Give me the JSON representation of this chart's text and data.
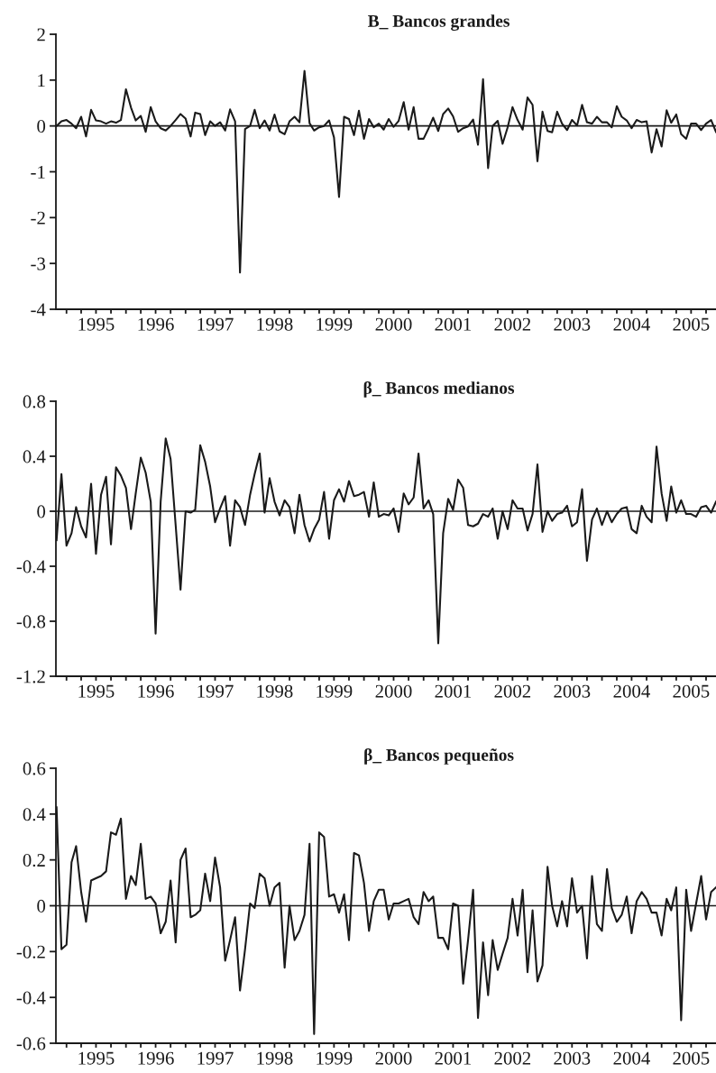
{
  "chart_data": [
    {
      "type": "line",
      "title": "B_ Bancos grandes",
      "color": "#1a1a1a",
      "line_style": "solid",
      "marker": "none",
      "x": [
        "1994-11",
        "1994-12",
        "1995-01",
        "1995-02",
        "1995-03",
        "1995-04",
        "1995-05",
        "1995-06",
        "1995-07",
        "1995-08",
        "1995-09",
        "1995-10",
        "1995-11",
        "1995-12",
        "1996-01",
        "1996-02",
        "1996-03",
        "1996-04",
        "1996-05",
        "1996-06",
        "1996-07",
        "1996-08",
        "1996-09",
        "1996-10",
        "1996-11",
        "1996-12",
        "1997-01",
        "1997-02",
        "1997-03",
        "1997-04",
        "1997-05",
        "1997-06",
        "1997-07",
        "1997-08",
        "1997-09",
        "1997-10",
        "1997-11",
        "1997-12",
        "1998-01",
        "1998-02",
        "1998-03",
        "1998-04",
        "1998-05",
        "1998-06",
        "1998-07",
        "1998-08",
        "1998-09",
        "1998-10",
        "1998-11",
        "1998-12",
        "1999-01",
        "1999-02",
        "1999-03",
        "1999-04",
        "1999-05",
        "1999-06",
        "1999-07",
        "1999-08",
        "1999-09",
        "1999-10",
        "1999-11",
        "1999-12",
        "2000-01",
        "2000-02",
        "2000-03",
        "2000-04",
        "2000-05",
        "2000-06",
        "2000-07",
        "2000-08",
        "2000-09",
        "2000-10",
        "2000-11",
        "2000-12",
        "2001-01",
        "2001-02",
        "2001-03",
        "2001-04",
        "2001-05",
        "2001-06",
        "2001-07",
        "2001-08",
        "2001-09",
        "2001-10",
        "2001-11",
        "2001-12",
        "2002-01",
        "2002-02",
        "2002-03",
        "2002-04",
        "2002-05",
        "2002-06",
        "2002-07",
        "2002-08",
        "2002-09",
        "2002-10",
        "2002-11",
        "2002-12",
        "2003-01",
        "2003-02",
        "2003-03",
        "2003-04",
        "2003-05",
        "2003-06",
        "2003-07",
        "2003-08",
        "2003-09",
        "2003-10",
        "2003-11",
        "2003-12",
        "2004-01",
        "2004-02",
        "2004-03",
        "2004-04",
        "2004-05",
        "2004-06",
        "2004-07",
        "2004-08",
        "2004-09",
        "2004-10",
        "2004-11",
        "2004-12",
        "2005-01",
        "2005-02",
        "2005-03",
        "2005-04",
        "2005-05",
        "2005-06",
        "2005-07",
        "2005-08",
        "2005-09",
        "2005-10",
        "2005-11",
        "2005-12"
      ],
      "values": [
        0,
        0.1,
        0.13,
        0.05,
        -0.05,
        0.2,
        -0.23,
        0.35,
        0.12,
        0.1,
        0.05,
        0.1,
        0.07,
        0.13,
        0.8,
        0.4,
        0.12,
        0.22,
        -0.13,
        0.41,
        0.1,
        -0.05,
        -0.1,
        0,
        0.13,
        0.26,
        0.16,
        -0.23,
        0.29,
        0.26,
        -0.2,
        0.1,
        0,
        0.08,
        -0.1,
        0.36,
        0.1,
        -3.2,
        -0.07,
        0,
        0.35,
        -0.05,
        0.12,
        -0.1,
        0.25,
        -0.12,
        -0.18,
        0.1,
        0.2,
        0.08,
        1.2,
        0.06,
        -0.1,
        -0.03,
        0,
        0.12,
        -0.25,
        -1.55,
        0.2,
        0.15,
        -0.2,
        0.33,
        -0.28,
        0.15,
        -0.03,
        0.05,
        -0.08,
        0.15,
        -0.02,
        0.11,
        0.52,
        -0.08,
        0.41,
        -0.28,
        -0.28,
        -0.05,
        0.18,
        -0.11,
        0.26,
        0.38,
        0.21,
        -0.13,
        -0.05,
        -0.01,
        0.14,
        -0.41,
        1.02,
        -0.92,
        0,
        0.11,
        -0.39,
        -0.03,
        0.41,
        0.13,
        -0.08,
        0.62,
        0.46,
        -0.77,
        0.31,
        -0.11,
        -0.14,
        0.31,
        0.05,
        -0.09,
        0.13,
        0.01,
        0.46,
        0.08,
        0.05,
        0.2,
        0.08,
        0.08,
        -0.03,
        0.43,
        0.2,
        0.12,
        -0.05,
        0.13,
        0.08,
        0.1,
        -0.58,
        -0.07,
        -0.45,
        0.34,
        0.07,
        0.25,
        -0.18,
        -0.28,
        0.05,
        0.05,
        -0.09,
        0.05,
        0.13,
        -0.13
      ],
      "xlim": [
        "1994-10-28",
        "2005-12-01"
      ],
      "ylim": [
        -4,
        2
      ],
      "yticks": [
        -4,
        -3,
        -2,
        -1,
        0,
        1,
        2
      ],
      "xticks": [
        {
          "value": "1995-01",
          "label": null
        },
        {
          "value": "1995-04",
          "label": null
        },
        {
          "value": "1995-07",
          "label": "1995"
        },
        {
          "value": "1995-10",
          "label": null
        },
        {
          "value": "1996-01",
          "label": null
        },
        {
          "value": "1996-04",
          "label": null
        },
        {
          "value": "1996-07",
          "label": "1996"
        },
        {
          "value": "1996-10",
          "label": null
        },
        {
          "value": "1997-01",
          "label": null
        },
        {
          "value": "1997-04",
          "label": null
        },
        {
          "value": "1997-07",
          "label": "1997"
        },
        {
          "value": "1997-10",
          "label": null
        },
        {
          "value": "1998-01",
          "label": null
        },
        {
          "value": "1998-04",
          "label": null
        },
        {
          "value": "1998-07",
          "label": "1998"
        },
        {
          "value": "1998-10",
          "label": null
        },
        {
          "value": "1999-01",
          "label": null
        },
        {
          "value": "1999-04",
          "label": null
        },
        {
          "value": "1999-07",
          "label": "1999"
        },
        {
          "value": "1999-10",
          "label": null
        },
        {
          "value": "2000-01",
          "label": null
        },
        {
          "value": "2000-04",
          "label": null
        },
        {
          "value": "2000-07",
          "label": "2000"
        },
        {
          "value": "2000-10",
          "label": null
        },
        {
          "value": "2001-01",
          "label": null
        },
        {
          "value": "2001-04",
          "label": null
        },
        {
          "value": "2001-07",
          "label": "2001"
        },
        {
          "value": "2001-10",
          "label": null
        },
        {
          "value": "2002-01",
          "label": null
        },
        {
          "value": "2002-04",
          "label": null
        },
        {
          "value": "2002-07",
          "label": "2002"
        },
        {
          "value": "2002-10",
          "label": null
        },
        {
          "value": "2003-01",
          "label": null
        },
        {
          "value": "2003-04",
          "label": null
        },
        {
          "value": "2003-07",
          "label": "2003"
        },
        {
          "value": "2003-10",
          "label": null
        },
        {
          "value": "2004-01",
          "label": null
        },
        {
          "value": "2004-04",
          "label": null
        },
        {
          "value": "2004-07",
          "label": "2004"
        },
        {
          "value": "2004-10",
          "label": null
        },
        {
          "value": "2005-01",
          "label": null
        },
        {
          "value": "2005-04",
          "label": null
        },
        {
          "value": "2005-07",
          "label": "2005"
        },
        {
          "value": "2005-10",
          "label": null
        }
      ],
      "ref_lines": [
        {
          "axis": "y",
          "value": 0,
          "color": "#1a1a1a"
        }
      ]
    },
    {
      "type": "line",
      "title": "β_ Bancos medianos",
      "color": "#1a1a1a",
      "line_style": "solid",
      "marker": "none",
      "x": [
        "1994-11",
        "1994-12",
        "1995-01",
        "1995-02",
        "1995-03",
        "1995-04",
        "1995-05",
        "1995-06",
        "1995-07",
        "1995-08",
        "1995-09",
        "1995-10",
        "1995-11",
        "1995-12",
        "1996-01",
        "1996-02",
        "1996-03",
        "1996-04",
        "1996-05",
        "1996-06",
        "1996-07",
        "1996-08",
        "1996-09",
        "1996-10",
        "1996-11",
        "1996-12",
        "1997-01",
        "1997-02",
        "1997-03",
        "1997-04",
        "1997-05",
        "1997-06",
        "1997-07",
        "1997-08",
        "1997-09",
        "1997-10",
        "1997-11",
        "1997-12",
        "1998-01",
        "1998-02",
        "1998-03",
        "1998-04",
        "1998-05",
        "1998-06",
        "1998-07",
        "1998-08",
        "1998-09",
        "1998-10",
        "1998-11",
        "1998-12",
        "1999-01",
        "1999-02",
        "1999-03",
        "1999-04",
        "1999-05",
        "1999-06",
        "1999-07",
        "1999-08",
        "1999-09",
        "1999-10",
        "1999-11",
        "1999-12",
        "2000-01",
        "2000-02",
        "2000-03",
        "2000-04",
        "2000-05",
        "2000-06",
        "2000-07",
        "2000-08",
        "2000-09",
        "2000-10",
        "2000-11",
        "2000-12",
        "2001-01",
        "2001-02",
        "2001-03",
        "2001-04",
        "2001-05",
        "2001-06",
        "2001-07",
        "2001-08",
        "2001-09",
        "2001-10",
        "2001-11",
        "2001-12",
        "2002-01",
        "2002-02",
        "2002-03",
        "2002-04",
        "2002-05",
        "2002-06",
        "2002-07",
        "2002-08",
        "2002-09",
        "2002-10",
        "2002-11",
        "2002-12",
        "2003-01",
        "2003-02",
        "2003-03",
        "2003-04",
        "2003-05",
        "2003-06",
        "2003-07",
        "2003-08",
        "2003-09",
        "2003-10",
        "2003-11",
        "2003-12",
        "2004-01",
        "2004-02",
        "2004-03",
        "2004-04",
        "2004-05",
        "2004-06",
        "2004-07",
        "2004-08",
        "2004-09",
        "2004-10",
        "2004-11",
        "2004-12",
        "2005-01",
        "2005-02",
        "2005-03",
        "2005-04",
        "2005-05",
        "2005-06",
        "2005-07",
        "2005-08",
        "2005-09",
        "2005-10",
        "2005-11",
        "2005-12"
      ],
      "values": [
        -0.21,
        0.27,
        -0.25,
        -0.16,
        0.03,
        -0.11,
        -0.19,
        0.2,
        -0.31,
        0.12,
        0.25,
        -0.24,
        0.32,
        0.26,
        0.17,
        -0.13,
        0.13,
        0.39,
        0.28,
        0.07,
        -0.89,
        0.07,
        0.53,
        0.38,
        -0.1,
        -0.57,
        0,
        -0.01,
        0.01,
        0.48,
        0.36,
        0.18,
        -0.08,
        0.02,
        0.11,
        -0.25,
        0.08,
        0.03,
        -0.1,
        0.12,
        0.27,
        0.42,
        -0.01,
        0.24,
        0.07,
        -0.03,
        0.08,
        0.03,
        -0.16,
        0.12,
        -0.1,
        -0.22,
        -0.13,
        -0.06,
        0.14,
        -0.2,
        0.08,
        0.16,
        0.07,
        0.22,
        0.11,
        0.12,
        0.14,
        -0.04,
        0.21,
        -0.04,
        -0.02,
        -0.03,
        0.02,
        -0.15,
        0.13,
        0.05,
        0.1,
        0.42,
        0.02,
        0.08,
        -0.02,
        -0.96,
        -0.16,
        0.09,
        0.01,
        0.23,
        0.17,
        -0.1,
        -0.11,
        -0.09,
        -0.02,
        -0.04,
        0.02,
        -0.2,
        0,
        -0.13,
        0.08,
        0.02,
        0.02,
        -0.14,
        -0.02,
        0.34,
        -0.15,
        0,
        -0.07,
        -0.02,
        -0.01,
        0.04,
        -0.11,
        -0.08,
        0.16,
        -0.36,
        -0.06,
        0.02,
        -0.1,
        0,
        -0.08,
        -0.02,
        0.02,
        0.03,
        -0.13,
        -0.16,
        0.04,
        -0.04,
        -0.08,
        0.47,
        0.13,
        -0.07,
        0.18,
        -0.01,
        0.08,
        -0.02,
        -0.02,
        -0.04,
        0.03,
        0.04,
        -0.01,
        0.07
      ],
      "xlim": [
        "1994-10-28",
        "2005-12-01"
      ],
      "ylim": [
        -1.2,
        0.8
      ],
      "yticks": [
        -1.2,
        -0.8,
        -0.4,
        0,
        0.4,
        0.8
      ],
      "xticks": [
        {
          "value": "1995-01",
          "label": null
        },
        {
          "value": "1995-04",
          "label": null
        },
        {
          "value": "1995-07",
          "label": "1995"
        },
        {
          "value": "1995-10",
          "label": null
        },
        {
          "value": "1996-01",
          "label": null
        },
        {
          "value": "1996-04",
          "label": null
        },
        {
          "value": "1996-07",
          "label": "1996"
        },
        {
          "value": "1996-10",
          "label": null
        },
        {
          "value": "1997-01",
          "label": null
        },
        {
          "value": "1997-04",
          "label": null
        },
        {
          "value": "1997-07",
          "label": "1997"
        },
        {
          "value": "1997-10",
          "label": null
        },
        {
          "value": "1998-01",
          "label": null
        },
        {
          "value": "1998-04",
          "label": null
        },
        {
          "value": "1998-07",
          "label": "1998"
        },
        {
          "value": "1998-10",
          "label": null
        },
        {
          "value": "1999-01",
          "label": null
        },
        {
          "value": "1999-04",
          "label": null
        },
        {
          "value": "1999-07",
          "label": "1999"
        },
        {
          "value": "1999-10",
          "label": null
        },
        {
          "value": "2000-01",
          "label": null
        },
        {
          "value": "2000-04",
          "label": null
        },
        {
          "value": "2000-07",
          "label": "2000"
        },
        {
          "value": "2000-10",
          "label": null
        },
        {
          "value": "2001-01",
          "label": null
        },
        {
          "value": "2001-04",
          "label": null
        },
        {
          "value": "2001-07",
          "label": "2001"
        },
        {
          "value": "2001-10",
          "label": null
        },
        {
          "value": "2002-01",
          "label": null
        },
        {
          "value": "2002-04",
          "label": null
        },
        {
          "value": "2002-07",
          "label": "2002"
        },
        {
          "value": "2002-10",
          "label": null
        },
        {
          "value": "2003-01",
          "label": null
        },
        {
          "value": "2003-04",
          "label": null
        },
        {
          "value": "2003-07",
          "label": "2003"
        },
        {
          "value": "2003-10",
          "label": null
        },
        {
          "value": "2004-01",
          "label": null
        },
        {
          "value": "2004-04",
          "label": null
        },
        {
          "value": "2004-07",
          "label": "2004"
        },
        {
          "value": "2004-10",
          "label": null
        },
        {
          "value": "2005-01",
          "label": null
        },
        {
          "value": "2005-04",
          "label": null
        },
        {
          "value": "2005-07",
          "label": "2005"
        },
        {
          "value": "2005-10",
          "label": null
        }
      ],
      "ref_lines": [
        {
          "axis": "y",
          "value": 0,
          "color": "#1a1a1a"
        }
      ]
    },
    {
      "type": "line",
      "title": "β_ Bancos pequeños",
      "color": "#1a1a1a",
      "line_style": "solid",
      "marker": "none",
      "x": [
        "1994-11",
        "1994-12",
        "1995-01",
        "1995-02",
        "1995-03",
        "1995-04",
        "1995-05",
        "1995-06",
        "1995-07",
        "1995-08",
        "1995-09",
        "1995-10",
        "1995-11",
        "1995-12",
        "1996-01",
        "1996-02",
        "1996-03",
        "1996-04",
        "1996-05",
        "1996-06",
        "1996-07",
        "1996-08",
        "1996-09",
        "1996-10",
        "1996-11",
        "1996-12",
        "1997-01",
        "1997-02",
        "1997-03",
        "1997-04",
        "1997-05",
        "1997-06",
        "1997-07",
        "1997-08",
        "1997-09",
        "1997-10",
        "1997-11",
        "1997-12",
        "1998-01",
        "1998-02",
        "1998-03",
        "1998-04",
        "1998-05",
        "1998-06",
        "1998-07",
        "1998-08",
        "1998-09",
        "1998-10",
        "1998-11",
        "1998-12",
        "1999-01",
        "1999-02",
        "1999-03",
        "1999-04",
        "1999-05",
        "1999-06",
        "1999-07",
        "1999-08",
        "1999-09",
        "1999-10",
        "1999-11",
        "1999-12",
        "2000-01",
        "2000-02",
        "2000-03",
        "2000-04",
        "2000-05",
        "2000-06",
        "2000-07",
        "2000-08",
        "2000-09",
        "2000-10",
        "2000-11",
        "2000-12",
        "2001-01",
        "2001-02",
        "2001-03",
        "2001-04",
        "2001-05",
        "2001-06",
        "2001-07",
        "2001-08",
        "2001-09",
        "2001-10",
        "2001-11",
        "2001-12",
        "2002-01",
        "2002-02",
        "2002-03",
        "2002-04",
        "2002-05",
        "2002-06",
        "2002-07",
        "2002-08",
        "2002-09",
        "2002-10",
        "2002-11",
        "2002-12",
        "2003-01",
        "2003-02",
        "2003-03",
        "2003-04",
        "2003-05",
        "2003-06",
        "2003-07",
        "2003-08",
        "2003-09",
        "2003-10",
        "2003-11",
        "2003-12",
        "2004-01",
        "2004-02",
        "2004-03",
        "2004-04",
        "2004-05",
        "2004-06",
        "2004-07",
        "2004-08",
        "2004-09",
        "2004-10",
        "2004-11",
        "2004-12",
        "2005-01",
        "2005-02",
        "2005-03",
        "2005-04",
        "2005-05",
        "2005-06",
        "2005-07",
        "2005-08",
        "2005-09",
        "2005-10",
        "2005-11",
        "2005-12"
      ],
      "values": [
        0.43,
        -0.19,
        -0.17,
        0.19,
        0.26,
        0.06,
        -0.07,
        0.11,
        0.12,
        0.13,
        0.15,
        0.32,
        0.31,
        0.38,
        0.03,
        0.13,
        0.09,
        0.27,
        0.03,
        0.04,
        0.01,
        -0.12,
        -0.07,
        0.11,
        -0.16,
        0.2,
        0.25,
        -0.05,
        -0.04,
        -0.02,
        0.14,
        0.02,
        0.21,
        0.08,
        -0.24,
        -0.15,
        -0.05,
        -0.37,
        -0.19,
        0.01,
        -0.01,
        0.14,
        0.12,
        0,
        0.08,
        0.1,
        -0.27,
        0,
        -0.15,
        -0.11,
        -0.04,
        0.27,
        -0.56,
        0.32,
        0.3,
        0.04,
        0.05,
        -0.03,
        0.05,
        -0.15,
        0.23,
        0.22,
        0.1,
        -0.11,
        0.02,
        0.07,
        0.07,
        -0.06,
        0.01,
        0.01,
        0.02,
        0.03,
        -0.05,
        -0.08,
        0.06,
        0.02,
        0.04,
        -0.14,
        -0.14,
        -0.19,
        0.01,
        0,
        -0.34,
        -0.15,
        0.07,
        -0.49,
        -0.16,
        -0.39,
        -0.15,
        -0.28,
        -0.21,
        -0.14,
        0.03,
        -0.13,
        0.07,
        -0.29,
        -0.02,
        -0.33,
        -0.26,
        0.17,
        0,
        -0.09,
        0.02,
        -0.09,
        0.12,
        -0.03,
        0,
        -0.23,
        0.13,
        -0.08,
        -0.11,
        0.16,
        -0.01,
        -0.07,
        -0.04,
        0.04,
        -0.12,
        0.02,
        0.06,
        0.03,
        -0.03,
        -0.03,
        -0.13,
        0.03,
        -0.02,
        0.08,
        -0.5,
        0.07,
        -0.11,
        0.01,
        0.13,
        -0.06,
        0.06,
        0.08
      ],
      "xlim": [
        "1994-10-28",
        "2005-12-01"
      ],
      "ylim": [
        -0.6,
        0.6
      ],
      "yticks": [
        -0.6,
        -0.4,
        -0.2,
        0,
        0.2,
        0.4,
        0.6
      ],
      "xticks": [
        {
          "value": "1995-01",
          "label": null
        },
        {
          "value": "1995-04",
          "label": null
        },
        {
          "value": "1995-07",
          "label": "1995"
        },
        {
          "value": "1995-10",
          "label": null
        },
        {
          "value": "1996-01",
          "label": null
        },
        {
          "value": "1996-04",
          "label": null
        },
        {
          "value": "1996-07",
          "label": "1996"
        },
        {
          "value": "1996-10",
          "label": null
        },
        {
          "value": "1997-01",
          "label": null
        },
        {
          "value": "1997-04",
          "label": null
        },
        {
          "value": "1997-07",
          "label": "1997"
        },
        {
          "value": "1997-10",
          "label": null
        },
        {
          "value": "1998-01",
          "label": null
        },
        {
          "value": "1998-04",
          "label": null
        },
        {
          "value": "1998-07",
          "label": "1998"
        },
        {
          "value": "1998-10",
          "label": null
        },
        {
          "value": "1999-01",
          "label": null
        },
        {
          "value": "1999-04",
          "label": null
        },
        {
          "value": "1999-07",
          "label": "1999"
        },
        {
          "value": "1999-10",
          "label": null
        },
        {
          "value": "2000-01",
          "label": null
        },
        {
          "value": "2000-04",
          "label": null
        },
        {
          "value": "2000-07",
          "label": "2000"
        },
        {
          "value": "2000-10",
          "label": null
        },
        {
          "value": "2001-01",
          "label": null
        },
        {
          "value": "2001-04",
          "label": null
        },
        {
          "value": "2001-07",
          "label": "2001"
        },
        {
          "value": "2001-10",
          "label": null
        },
        {
          "value": "2002-01",
          "label": null
        },
        {
          "value": "2002-04",
          "label": null
        },
        {
          "value": "2002-07",
          "label": "2002"
        },
        {
          "value": "2002-10",
          "label": null
        },
        {
          "value": "2003-01",
          "label": null
        },
        {
          "value": "2003-04",
          "label": null
        },
        {
          "value": "2003-07",
          "label": "2003"
        },
        {
          "value": "2003-10",
          "label": null
        },
        {
          "value": "2004-01",
          "label": null
        },
        {
          "value": "2004-04",
          "label": null
        },
        {
          "value": "2004-07",
          "label": "2004"
        },
        {
          "value": "2004-10",
          "label": null
        },
        {
          "value": "2005-01",
          "label": null
        },
        {
          "value": "2005-04",
          "label": null
        },
        {
          "value": "2005-07",
          "label": "2005"
        },
        {
          "value": "2005-10",
          "label": null
        }
      ],
      "ref_lines": [
        {
          "axis": "y",
          "value": 0,
          "color": "#1a1a1a"
        }
      ]
    }
  ]
}
